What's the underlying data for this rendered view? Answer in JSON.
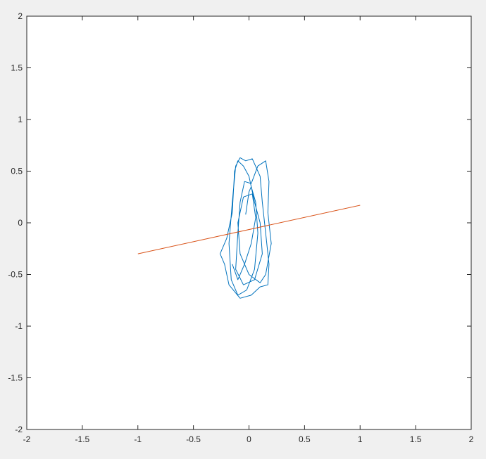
{
  "chart_data": {
    "type": "line",
    "title": "",
    "xlabel": "",
    "ylabel": "",
    "xlim": [
      -2,
      2
    ],
    "ylim": [
      -2,
      2
    ],
    "xticks": [
      -2,
      -1.5,
      -1,
      -0.5,
      0,
      0.5,
      1,
      1.5,
      2
    ],
    "yticks": [
      -2,
      -1.5,
      -1,
      -0.5,
      0,
      0.5,
      1,
      1.5,
      2
    ],
    "xtick_labels": [
      "-2",
      "-1.5",
      "-1",
      "-0.5",
      "0",
      "0.5",
      "1",
      "1.5",
      "2"
    ],
    "ytick_labels": [
      "-2",
      "-1.5",
      "-1",
      "-0.5",
      "0",
      "0.5",
      "1",
      "1.5",
      "2"
    ],
    "grid": false,
    "background": "#f0f0f0",
    "series": [
      {
        "color": "#0072BD",
        "x": [
          -0.03,
          0.0,
          0.02,
          0.06,
          0.08,
          0.05,
          -0.02,
          -0.1,
          -0.16,
          -0.18,
          -0.15,
          -0.12,
          -0.08,
          -0.03,
          0.03,
          0.1,
          0.12,
          0.15,
          0.18,
          0.17,
          0.1,
          0.02,
          -0.08,
          -0.18,
          -0.22,
          -0.26,
          -0.2,
          -0.15,
          -0.13,
          -0.1,
          -0.05,
          0.0,
          0.05,
          0.1,
          0.12,
          0.05,
          -0.05,
          -0.12,
          -0.1,
          -0.08,
          -0.04,
          0.02,
          0.08,
          0.15,
          0.18,
          0.17,
          0.2,
          0.15,
          0.1,
          0.0,
          -0.08,
          -0.1,
          -0.05,
          0.03,
          0.06,
          0.02,
          -0.04,
          -0.1,
          -0.15
        ],
        "y": [
          0.08,
          0.3,
          0.35,
          0.2,
          -0.1,
          -0.45,
          -0.65,
          -0.7,
          -0.55,
          -0.2,
          0.2,
          0.55,
          0.63,
          0.6,
          0.62,
          0.45,
          0.2,
          -0.1,
          -0.4,
          -0.6,
          -0.62,
          -0.7,
          -0.73,
          -0.6,
          -0.4,
          -0.3,
          -0.15,
          0.1,
          0.5,
          0.6,
          0.55,
          0.45,
          0.2,
          0.0,
          -0.3,
          -0.55,
          -0.6,
          -0.45,
          -0.1,
          0.2,
          0.4,
          0.38,
          0.55,
          0.6,
          0.4,
          0.1,
          -0.2,
          -0.5,
          -0.58,
          -0.5,
          -0.3,
          0.0,
          0.25,
          0.28,
          0.05,
          -0.2,
          -0.4,
          -0.55,
          -0.4
        ]
      },
      {
        "color": "#D95319",
        "x": [
          -1,
          1
        ],
        "y": [
          -0.3,
          0.17
        ]
      }
    ]
  }
}
